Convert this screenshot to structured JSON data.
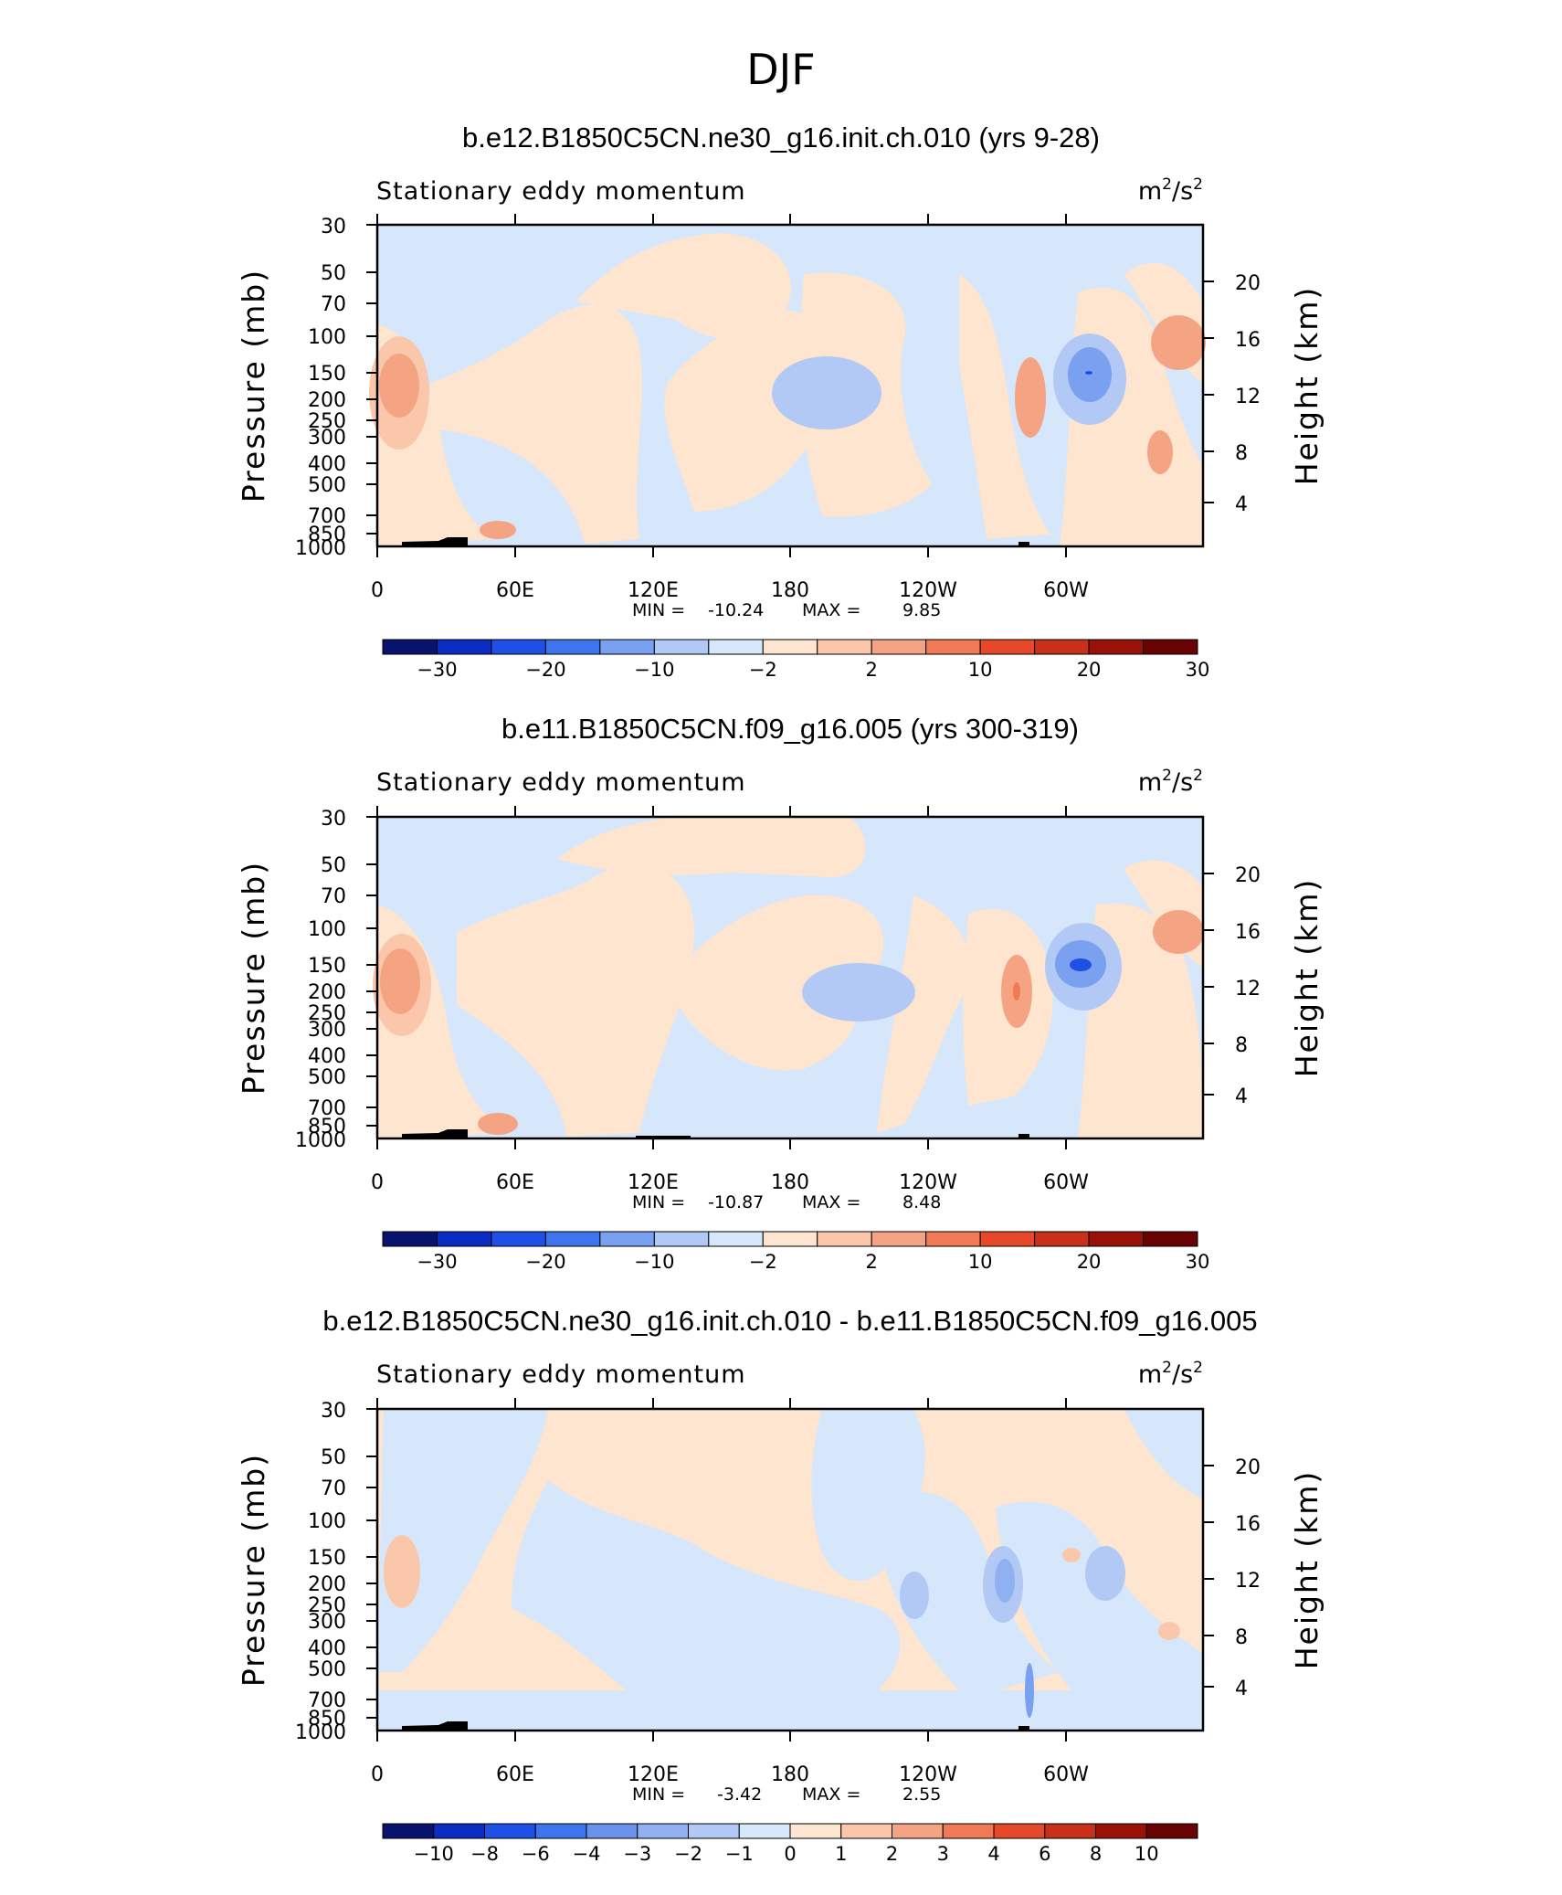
{
  "season_title": "DJF",
  "chart_data": [
    {
      "type": "heatmap",
      "title": "b.e12.B1850C5CN.ne30_g16.init.ch.010 (yrs 9-28)",
      "left_string": "Stationary eddy momentum",
      "units_base": "m",
      "units_exp": "2",
      "units_sep": "/s",
      "ylabel": "Pressure (mb)",
      "ylabel_right": "Height (km)",
      "x_ticks": [
        "0",
        "60E",
        "120E",
        "180",
        "120W",
        "60W"
      ],
      "y_ticks": [
        "30",
        "50",
        "70",
        "100",
        "150",
        "200",
        "250",
        "300",
        "400",
        "500",
        "700",
        "850",
        "1000"
      ],
      "y_right_ticks": [
        "20",
        "16",
        "12",
        "8",
        "4"
      ],
      "stats": {
        "min_label": "MIN =",
        "min": "-10.24",
        "max_label": "MAX =",
        "max": "9.85"
      },
      "colorbar_labels": [
        "−30",
        "−20",
        "−10",
        "−2",
        "2",
        "10",
        "20",
        "30"
      ],
      "ylim": [
        1000,
        30
      ],
      "xlim": [
        0,
        360
      ]
    },
    {
      "type": "heatmap",
      "title": "b.e11.B1850C5CN.f09_g16.005 (yrs 300-319)",
      "left_string": "Stationary eddy momentum",
      "units_base": "m",
      "units_exp": "2",
      "units_sep": "/s",
      "ylabel": "Pressure (mb)",
      "ylabel_right": "Height (km)",
      "x_ticks": [
        "0",
        "60E",
        "120E",
        "180",
        "120W",
        "60W"
      ],
      "y_ticks": [
        "30",
        "50",
        "70",
        "100",
        "150",
        "200",
        "250",
        "300",
        "400",
        "500",
        "700",
        "850",
        "1000"
      ],
      "y_right_ticks": [
        "20",
        "16",
        "12",
        "8",
        "4"
      ],
      "stats": {
        "min_label": "MIN =",
        "min": "-10.87",
        "max_label": "MAX =",
        "max": "8.48"
      },
      "colorbar_labels": [
        "−30",
        "−20",
        "−10",
        "−2",
        "2",
        "10",
        "20",
        "30"
      ],
      "ylim": [
        1000,
        30
      ],
      "xlim": [
        0,
        360
      ]
    },
    {
      "type": "heatmap",
      "title": "b.e12.B1850C5CN.ne30_g16.init.ch.010 - b.e11.B1850C5CN.f09_g16.005",
      "left_string": "Stationary eddy momentum",
      "units_base": "m",
      "units_exp": "2",
      "units_sep": "/s",
      "ylabel": "Pressure (mb)",
      "ylabel_right": "Height (km)",
      "x_ticks": [
        "0",
        "60E",
        "120E",
        "180",
        "120W",
        "60W"
      ],
      "y_ticks": [
        "30",
        "50",
        "70",
        "100",
        "150",
        "200",
        "250",
        "300",
        "400",
        "500",
        "700",
        "850",
        "1000"
      ],
      "y_right_ticks": [
        "20",
        "16",
        "12",
        "8",
        "4"
      ],
      "stats": {
        "min_label": "MIN =",
        "min": "-3.42",
        "max_label": "MAX =",
        "max": "2.55"
      },
      "colorbar_labels": [
        "−10",
        "−8",
        "−6",
        "−4",
        "−3",
        "−2",
        "−1",
        "0",
        "1",
        "2",
        "3",
        "4",
        "6",
        "8",
        "10"
      ],
      "ylim": [
        1000,
        30
      ],
      "xlim": [
        0,
        360
      ]
    }
  ],
  "colors": {
    "colorbar_abs": [
      "#08136e",
      "#0c2dc4",
      "#1e50e6",
      "#3f75ec",
      "#7aa1f0",
      "#b3c9f5",
      "#d6e6fb",
      "#fde5cf",
      "#fac7ab",
      "#f5a483",
      "#ef7a55",
      "#e6492a",
      "#c8301a",
      "#99120a",
      "#6a0404"
    ],
    "colorbar_diff": [
      "#08136e",
      "#0c2dc4",
      "#1e50e6",
      "#3f75ec",
      "#6a92ee",
      "#91b0f2",
      "#b3c9f5",
      "#d6e6fb",
      "#fde5cf",
      "#fac7ab",
      "#f5a483",
      "#ef7a55",
      "#e6492a",
      "#c8301a",
      "#99120a",
      "#6a0404"
    ],
    "light_blue": "#d6e6fb",
    "light_orange": "#fde5cf"
  }
}
